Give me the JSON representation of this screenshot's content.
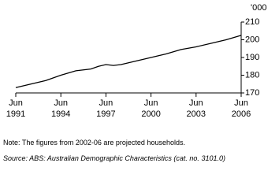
{
  "chart_data": {
    "type": "line",
    "y_label": "'000",
    "x": [
      1991,
      1992,
      1993,
      1994,
      1995,
      1996,
      1996.5,
      1997,
      1997.5,
      1998,
      1999,
      2000,
      2001,
      2002,
      2003,
      2004,
      2005,
      2006
    ],
    "series": [
      {
        "name": "Households",
        "color": "#000000",
        "values": [
          173,
          175,
          177,
          180,
          182.5,
          183.5,
          185,
          186,
          185.5,
          186,
          188,
          190,
          192,
          194.5,
          196,
          198,
          200,
          202.5
        ]
      }
    ],
    "xlim": [
      1991,
      2006
    ],
    "xticks": [
      {
        "value": 1991,
        "label": "Jun 1991"
      },
      {
        "value": 1994,
        "label": "Jun 1994"
      },
      {
        "value": 1997,
        "label": "Jun 1997"
      },
      {
        "value": 2000,
        "label": "Jun 2000"
      },
      {
        "value": 2003,
        "label": "Jun 2003"
      },
      {
        "value": 2006,
        "label": "Jun 2006"
      }
    ],
    "ylim": [
      170,
      210
    ],
    "yticks": [
      170,
      180,
      190,
      200,
      210
    ],
    "note": "Note: The figures from 2002-06 are projected households.",
    "source": "Source: ABS: Australian Demographic Characteristics (cat. no. 3101.0)"
  }
}
